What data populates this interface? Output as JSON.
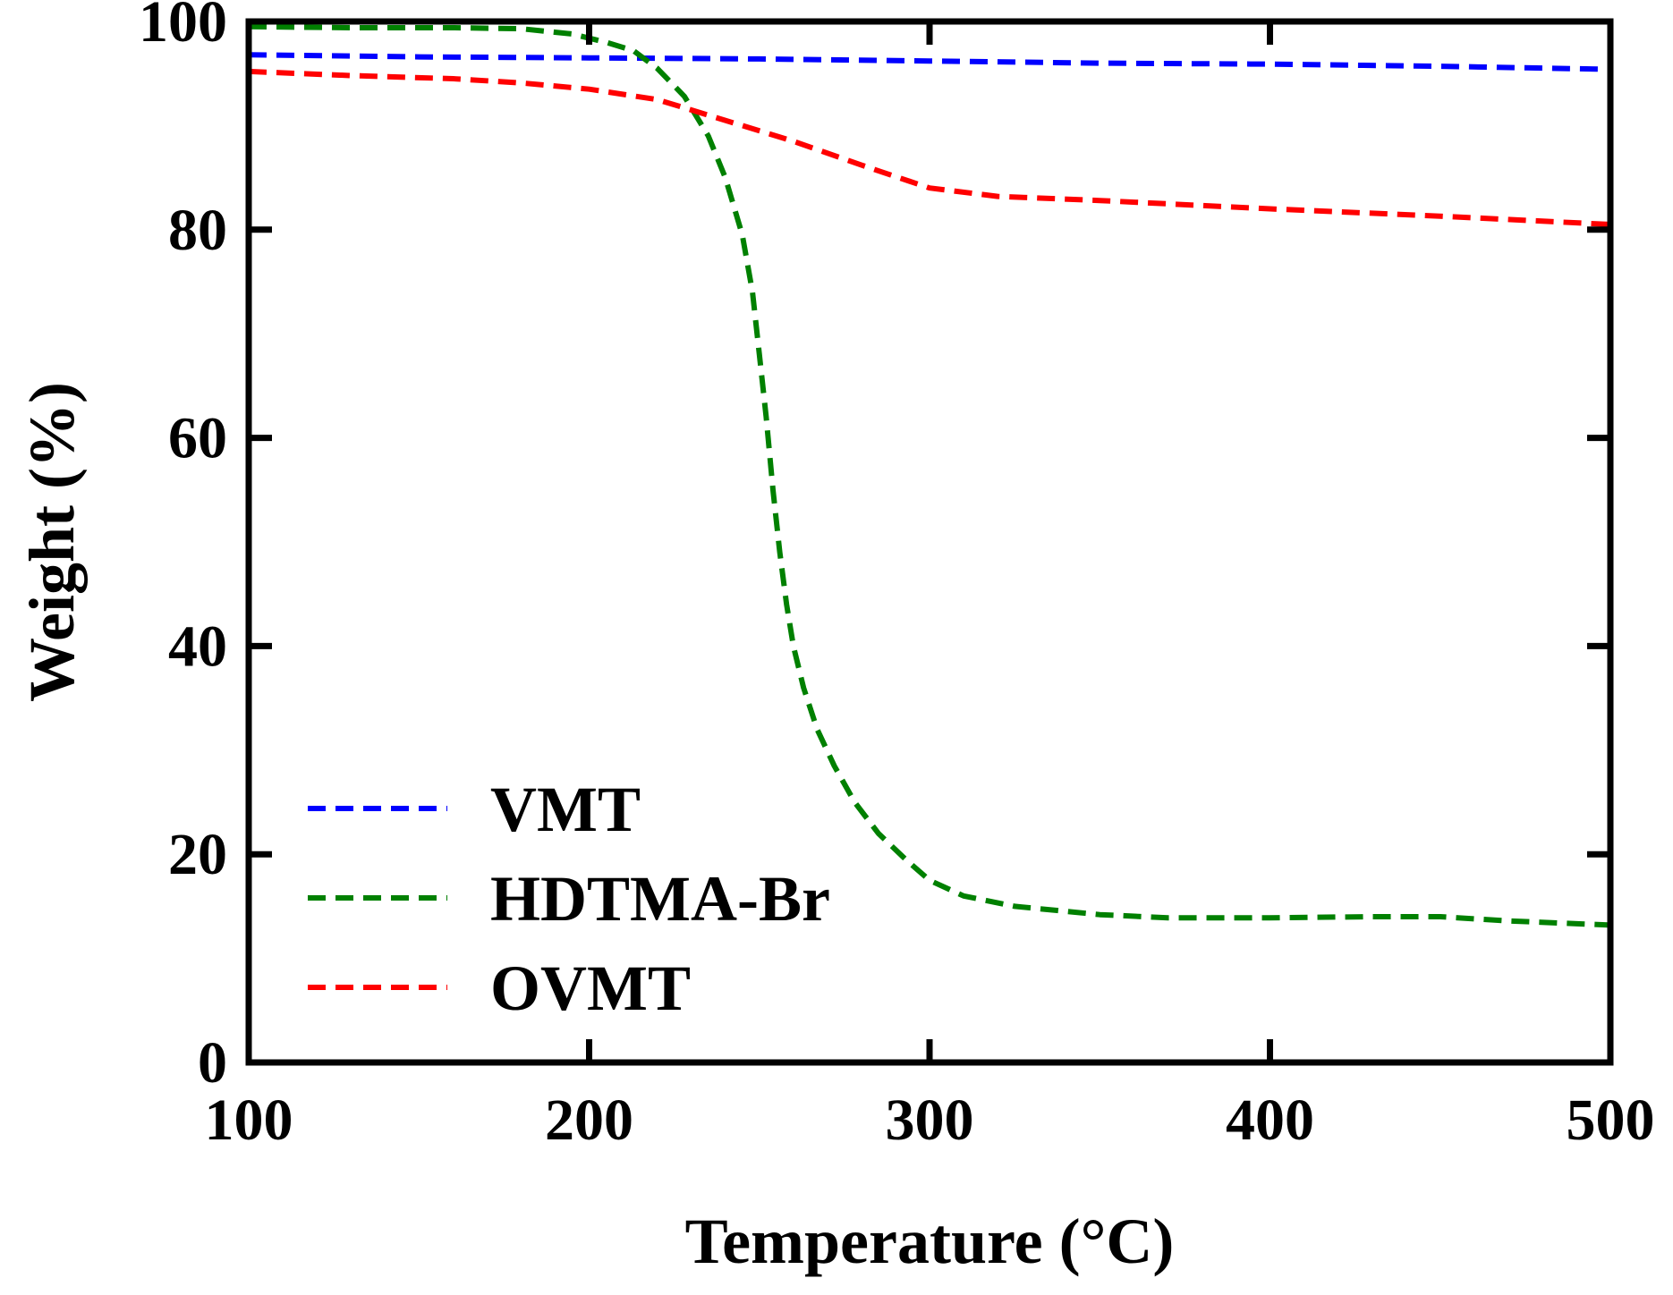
{
  "chart_data": {
    "type": "line",
    "title": "",
    "xlabel": "Temperature (°C)",
    "ylabel": "Weight (%)",
    "xlim": [
      100,
      500
    ],
    "ylim": [
      0,
      100
    ],
    "xticks": [
      100,
      200,
      300,
      400,
      500
    ],
    "yticks": [
      0,
      20,
      40,
      60,
      80,
      100
    ],
    "grid": false,
    "legend_position": "bottom-left",
    "series": [
      {
        "name": "VMT",
        "color": "#0000ff",
        "line_style": "dashed",
        "x": [
          100,
          150,
          200,
          250,
          300,
          350,
          400,
          450,
          500
        ],
        "y": [
          96.8,
          96.6,
          96.5,
          96.4,
          96.2,
          96.0,
          95.9,
          95.7,
          95.4
        ]
      },
      {
        "name": "HDTMA-Br",
        "color": "#008000",
        "line_style": "dashed",
        "x": [
          100,
          130,
          160,
          180,
          195,
          205,
          213,
          220,
          228,
          235,
          240,
          245,
          248,
          250,
          252,
          254,
          256,
          258,
          260,
          263,
          267,
          272,
          278,
          285,
          293,
          300,
          310,
          325,
          350,
          370,
          400,
          430,
          450,
          470,
          500
        ],
        "y": [
          99.5,
          99.4,
          99.4,
          99.3,
          98.8,
          98.0,
          97.2,
          95.5,
          92.8,
          89.0,
          85.0,
          79.5,
          74.0,
          68.0,
          62.0,
          55.0,
          49.0,
          44.0,
          40.0,
          36.0,
          32.0,
          28.5,
          25.0,
          22.0,
          19.5,
          17.5,
          16.0,
          15.0,
          14.2,
          13.9,
          13.9,
          14.0,
          14.0,
          13.6,
          13.2
        ]
      },
      {
        "name": "OVMT",
        "color": "#ff0000",
        "line_style": "dashed",
        "x": [
          100,
          130,
          160,
          180,
          200,
          220,
          240,
          260,
          280,
          300,
          320,
          350,
          400,
          450,
          500
        ],
        "y": [
          95.2,
          94.8,
          94.5,
          94.1,
          93.5,
          92.5,
          90.5,
          88.5,
          86.2,
          84.0,
          83.2,
          82.8,
          82.0,
          81.3,
          80.5
        ]
      }
    ]
  }
}
